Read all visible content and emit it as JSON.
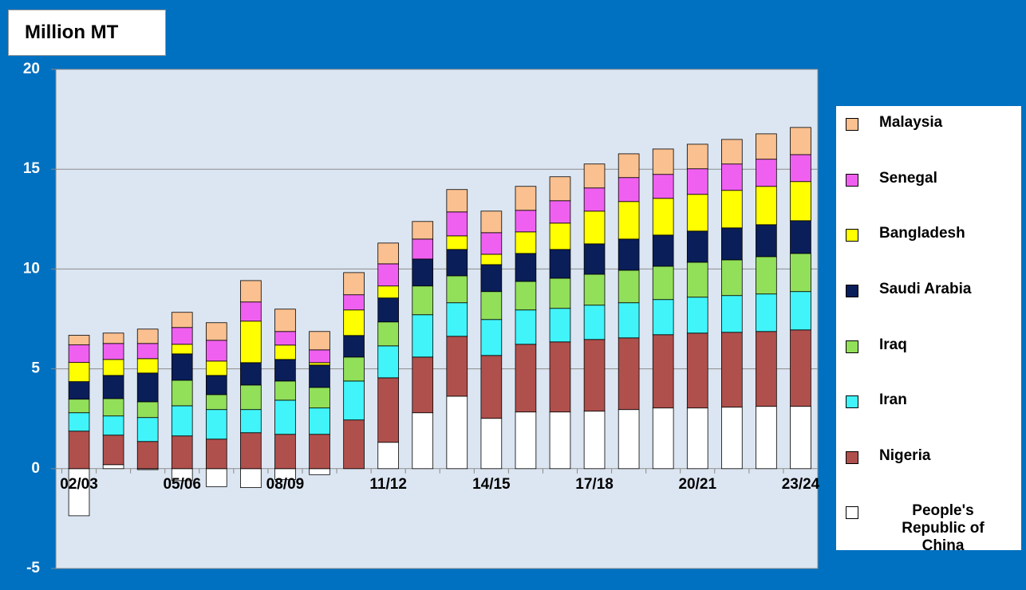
{
  "chart_data": {
    "type": "bar",
    "stacked": true,
    "title": "Million MT",
    "categories": [
      "02/03",
      null,
      null,
      "05/06",
      null,
      null,
      "08/09",
      null,
      null,
      "11/12",
      null,
      null,
      "14/15",
      null,
      null,
      "17/18",
      null,
      null,
      "20/21",
      null,
      null,
      "23/24"
    ],
    "series": [
      {
        "name": "People's Republic of China",
        "color": "#ffffff",
        "values": [
          -2.36,
          0.2,
          -0.05,
          -0.6,
          -0.9,
          -0.95,
          -0.55,
          -0.3,
          0,
          1.32,
          2.8,
          3.63,
          2.52,
          2.84,
          2.84,
          2.88,
          2.96,
          3.04,
          3.04,
          3.08,
          3.12,
          3.12
        ]
      },
      {
        "name": "Nigeria",
        "color": "#b0504c",
        "values": [
          1.88,
          1.48,
          1.36,
          1.64,
          1.48,
          1.8,
          1.72,
          1.72,
          2.44,
          3.23,
          2.79,
          3.0,
          3.15,
          3.39,
          3.51,
          3.59,
          3.59,
          3.67,
          3.75,
          3.75,
          3.75,
          3.83
        ]
      },
      {
        "name": "Iran",
        "color": "#40f4fa",
        "values": [
          0.92,
          0.96,
          1.2,
          1.51,
          1.48,
          1.16,
          1.71,
          1.32,
          1.95,
          1.6,
          2.12,
          1.68,
          1.8,
          1.72,
          1.68,
          1.72,
          1.76,
          1.76,
          1.8,
          1.84,
          1.88,
          1.92
        ]
      },
      {
        "name": "Iraq",
        "color": "#92e05a",
        "values": [
          0.68,
          0.87,
          0.79,
          1.28,
          0.75,
          1.23,
          0.96,
          1.03,
          1.2,
          1.2,
          1.44,
          1.35,
          1.4,
          1.43,
          1.51,
          1.55,
          1.63,
          1.67,
          1.75,
          1.79,
          1.87,
          1.91
        ]
      },
      {
        "name": "Saudi Arabia",
        "color": "#0a1e5a",
        "values": [
          0.88,
          1.16,
          1.44,
          1.32,
          0.96,
          1.12,
          1.08,
          1.12,
          1.08,
          1.2,
          1.35,
          1.32,
          1.35,
          1.4,
          1.44,
          1.52,
          1.56,
          1.56,
          1.56,
          1.6,
          1.6,
          1.64
        ]
      },
      {
        "name": "Bangladesh",
        "color": "#ffff00",
        "values": [
          0.96,
          0.8,
          0.72,
          0.48,
          0.72,
          2.08,
          0.72,
          0.12,
          1.28,
          0.6,
          0,
          0.68,
          0.52,
          1.08,
          1.32,
          1.64,
          1.88,
          1.84,
          1.84,
          1.88,
          1.92,
          1.96
        ]
      },
      {
        "name": "Senegal",
        "color": "#f060f0",
        "values": [
          0.88,
          0.8,
          0.76,
          0.84,
          1.04,
          0.96,
          0.68,
          0.64,
          0.76,
          1.11,
          1.0,
          1.2,
          1.08,
          1.08,
          1.12,
          1.16,
          1.2,
          1.2,
          1.28,
          1.32,
          1.36,
          1.35
        ]
      },
      {
        "name": "Malaysia",
        "color": "#fac090",
        "values": [
          0.48,
          0.52,
          0.72,
          0.76,
          0.88,
          1.07,
          1.12,
          0.92,
          1.11,
          1.04,
          0.88,
          1.12,
          1.08,
          1.2,
          1.2,
          1.2,
          1.19,
          1.27,
          1.23,
          1.23,
          1.27,
          1.36
        ]
      }
    ],
    "ylim": [
      -5,
      20
    ],
    "yticks": [
      -5,
      0,
      5,
      10,
      15,
      20
    ],
    "grid": true,
    "legend": "right"
  }
}
